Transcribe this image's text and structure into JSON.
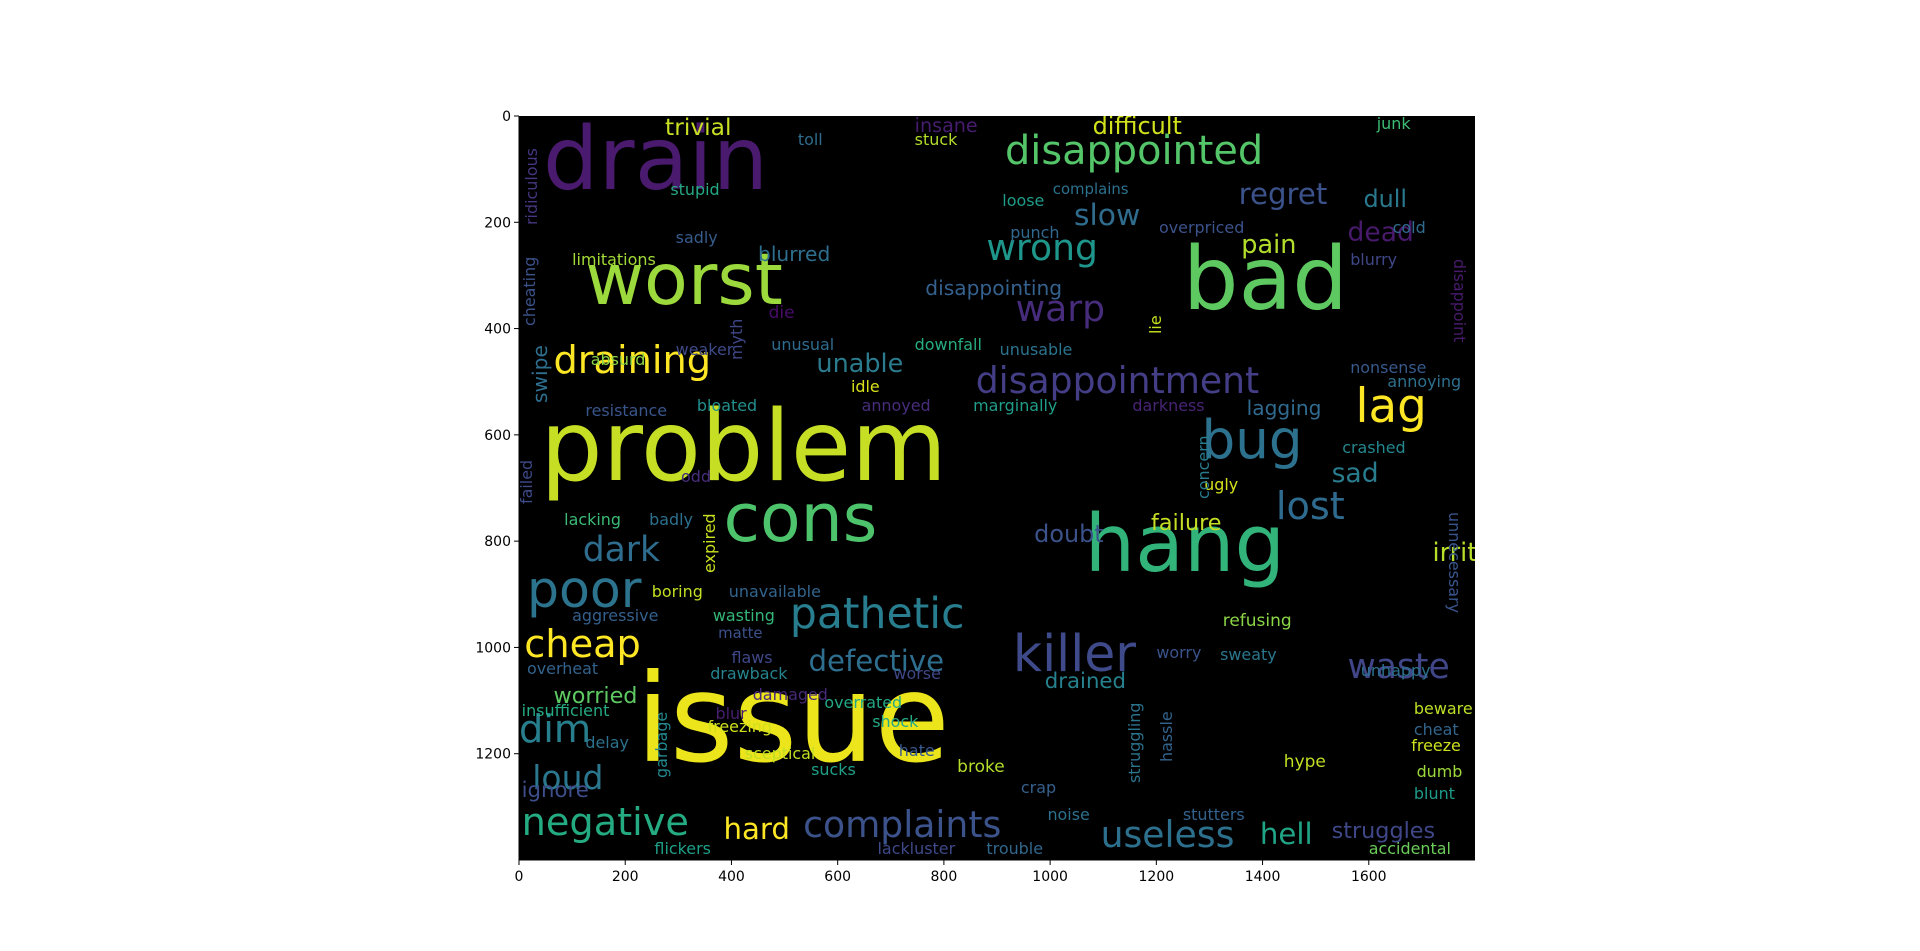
{
  "colors": {
    "background": "#000000",
    "axis": "#000000"
  },
  "chart_data": {
    "type": "wordcloud",
    "title": "",
    "xlabel": "",
    "ylabel": "",
    "xlim": [
      0,
      1800
    ],
    "ylim": [
      1400,
      0
    ],
    "x_ticks": [
      0,
      200,
      400,
      600,
      800,
      1000,
      1200,
      1400,
      1600
    ],
    "y_ticks": [
      0,
      200,
      400,
      600,
      800,
      1000,
      1200
    ],
    "words": [
      {
        "text": "issue",
        "x": 220,
        "y": 1020,
        "size": 230,
        "color": "#ece51c"
      },
      {
        "text": "problem",
        "x": 40,
        "y": 530,
        "size": 185,
        "color": "#c6df25"
      },
      {
        "text": "drain",
        "x": 45,
        "y": 0,
        "size": 165,
        "color": "#491a6d"
      },
      {
        "text": "bad",
        "x": 1250,
        "y": 225,
        "size": 165,
        "color": "#5ec961"
      },
      {
        "text": "hang",
        "x": 1065,
        "y": 730,
        "size": 150,
        "color": "#32b37a"
      },
      {
        "text": "worst",
        "x": 125,
        "y": 240,
        "size": 135,
        "color": "#9bd93c"
      },
      {
        "text": "cons",
        "x": 385,
        "y": 695,
        "size": 125,
        "color": "#4dc36b"
      },
      {
        "text": "disappointed",
        "x": 915,
        "y": 30,
        "size": 75,
        "color": "#54c568"
      },
      {
        "text": "waste",
        "x": 1560,
        "y": 1005,
        "size": 65,
        "color": "#404688"
      },
      {
        "text": "drained",
        "x": 990,
        "y": 1045,
        "size": 40,
        "color": "#26828e"
      },
      {
        "text": "trivial",
        "x": 275,
        "y": 0,
        "size": 44,
        "color": "#c8df24"
      },
      {
        "text": "difficult",
        "x": 1080,
        "y": -2,
        "size": 45,
        "color": "#d2e21b"
      },
      {
        "text": "regret",
        "x": 1355,
        "y": 120,
        "size": 55,
        "color": "#3b528b"
      },
      {
        "text": "slow",
        "x": 1045,
        "y": 160,
        "size": 56,
        "color": "#2f6c8e"
      },
      {
        "text": "wrong",
        "x": 880,
        "y": 215,
        "size": 68,
        "color": "#1f968b"
      },
      {
        "text": "dull",
        "x": 1590,
        "y": 135,
        "size": 45,
        "color": "#2a788e"
      },
      {
        "text": "dead",
        "x": 1560,
        "y": 195,
        "size": 50,
        "color": "#481a6c"
      },
      {
        "text": "pain",
        "x": 1360,
        "y": 220,
        "size": 48,
        "color": "#b4de2c"
      },
      {
        "text": "blurred",
        "x": 450,
        "y": 240,
        "size": 38,
        "color": "#2e6e8e"
      },
      {
        "text": "warp",
        "x": 935,
        "y": 330,
        "size": 68,
        "color": "#462c7b"
      },
      {
        "text": "disappointing",
        "x": 765,
        "y": 305,
        "size": 38,
        "color": "#34618d"
      },
      {
        "text": "draining",
        "x": 65,
        "y": 425,
        "size": 72,
        "color": "#fde725"
      },
      {
        "text": "unable",
        "x": 560,
        "y": 445,
        "size": 48,
        "color": "#2a7b8e"
      },
      {
        "text": "disappointment",
        "x": 860,
        "y": 465,
        "size": 68,
        "color": "#433e85"
      },
      {
        "text": "lag",
        "x": 1575,
        "y": 505,
        "size": 88,
        "color": "#fde725"
      },
      {
        "text": "bug",
        "x": 1285,
        "y": 560,
        "size": 100,
        "color": "#2c718e"
      },
      {
        "text": "lost",
        "x": 1425,
        "y": 700,
        "size": 72,
        "color": "#2f6b8e"
      },
      {
        "text": "sad",
        "x": 1530,
        "y": 650,
        "size": 50,
        "color": "#297b8e"
      },
      {
        "text": "failure",
        "x": 1190,
        "y": 745,
        "size": 42,
        "color": "#c6df25"
      },
      {
        "text": "dark",
        "x": 120,
        "y": 785,
        "size": 65,
        "color": "#2e6d8e"
      },
      {
        "text": "poor",
        "x": 15,
        "y": 845,
        "size": 95,
        "color": "#2c738e"
      },
      {
        "text": "pathetic",
        "x": 510,
        "y": 900,
        "size": 80,
        "color": "#287d8e"
      },
      {
        "text": "killer",
        "x": 930,
        "y": 965,
        "size": 95,
        "color": "#3e4a89"
      },
      {
        "text": "cheap",
        "x": 10,
        "y": 960,
        "size": 72,
        "color": "#fde725"
      },
      {
        "text": "defective",
        "x": 545,
        "y": 1000,
        "size": 55,
        "color": "#2e6e8e"
      },
      {
        "text": "irritating",
        "x": 1720,
        "y": 800,
        "size": 48,
        "color": "#b8de29"
      },
      {
        "text": "doubt",
        "x": 970,
        "y": 765,
        "size": 45,
        "color": "#3b528b"
      },
      {
        "text": "dim",
        "x": 0,
        "y": 1120,
        "size": 72,
        "color": "#277f8e"
      },
      {
        "text": "loud",
        "x": 25,
        "y": 1215,
        "size": 62,
        "color": "#2a778e"
      },
      {
        "text": "negative",
        "x": 5,
        "y": 1295,
        "size": 72,
        "color": "#25ab82"
      },
      {
        "text": "hard",
        "x": 385,
        "y": 1315,
        "size": 55,
        "color": "#fde725"
      },
      {
        "text": "complaints",
        "x": 535,
        "y": 1300,
        "size": 68,
        "color": "#3b528b"
      },
      {
        "text": "useless",
        "x": 1095,
        "y": 1320,
        "size": 68,
        "color": "#2d708e"
      },
      {
        "text": "hell",
        "x": 1395,
        "y": 1325,
        "size": 55,
        "color": "#20a486"
      },
      {
        "text": "struggles",
        "x": 1530,
        "y": 1325,
        "size": 42,
        "color": "#3f4788"
      },
      {
        "text": "worried",
        "x": 65,
        "y": 1070,
        "size": 42,
        "color": "#5ec962"
      },
      {
        "text": "insane",
        "x": 745,
        "y": 0,
        "size": 36,
        "color": "#471c6f"
      },
      {
        "text": "toll",
        "x": 525,
        "y": 30,
        "size": 30,
        "color": "#2f6c8e"
      },
      {
        "text": "stuck",
        "x": 745,
        "y": 30,
        "size": 30,
        "color": "#b2dd2d"
      },
      {
        "text": "junk",
        "x": 1615,
        "y": 0,
        "size": 30,
        "color": "#3cbc75"
      },
      {
        "text": "stupid",
        "x": 285,
        "y": 125,
        "size": 30,
        "color": "#26a884"
      },
      {
        "text": "sadly",
        "x": 295,
        "y": 215,
        "size": 30,
        "color": "#365c8d"
      },
      {
        "text": "limitations",
        "x": 100,
        "y": 255,
        "size": 30,
        "color": "#a2da37"
      },
      {
        "text": "loose",
        "x": 910,
        "y": 145,
        "size": 30,
        "color": "#1e9c89"
      },
      {
        "text": "complains",
        "x": 1005,
        "y": 125,
        "size": 28,
        "color": "#2c718e"
      },
      {
        "text": "punch",
        "x": 925,
        "y": 205,
        "size": 30,
        "color": "#31688e"
      },
      {
        "text": "overpriced",
        "x": 1205,
        "y": 195,
        "size": 30,
        "color": "#3b528b"
      },
      {
        "text": "cold",
        "x": 1645,
        "y": 195,
        "size": 30,
        "color": "#2f6c8e"
      },
      {
        "text": "blurry",
        "x": 1565,
        "y": 255,
        "size": 30,
        "color": "#3f4788"
      },
      {
        "text": "die",
        "x": 470,
        "y": 355,
        "size": 32,
        "color": "#4a0c6b"
      },
      {
        "text": "weaker",
        "x": 295,
        "y": 425,
        "size": 30,
        "color": "#3e4a89"
      },
      {
        "text": "unusual",
        "x": 475,
        "y": 415,
        "size": 30,
        "color": "#2f6b8e"
      },
      {
        "text": "downfall",
        "x": 745,
        "y": 415,
        "size": 30,
        "color": "#26ad81"
      },
      {
        "text": "unusable",
        "x": 905,
        "y": 425,
        "size": 30,
        "color": "#2b748e"
      },
      {
        "text": "absurd",
        "x": 135,
        "y": 445,
        "size": 30,
        "color": "#8bd646"
      },
      {
        "text": "nonsense",
        "x": 1565,
        "y": 460,
        "size": 30,
        "color": "#38598c"
      },
      {
        "text": "annoying",
        "x": 1635,
        "y": 485,
        "size": 30,
        "color": "#2d708e"
      },
      {
        "text": "idle",
        "x": 625,
        "y": 495,
        "size": 30,
        "color": "#d8e219"
      },
      {
        "text": "resistance",
        "x": 125,
        "y": 540,
        "size": 30,
        "color": "#39568c"
      },
      {
        "text": "bloated",
        "x": 335,
        "y": 530,
        "size": 30,
        "color": "#21908d"
      },
      {
        "text": "annoyed",
        "x": 645,
        "y": 530,
        "size": 30,
        "color": "#472d7b"
      },
      {
        "text": "marginally",
        "x": 855,
        "y": 530,
        "size": 30,
        "color": "#1f9e89"
      },
      {
        "text": "darkness",
        "x": 1155,
        "y": 530,
        "size": 30,
        "color": "#482475"
      },
      {
        "text": "lagging",
        "x": 1370,
        "y": 530,
        "size": 38,
        "color": "#306a8e"
      },
      {
        "text": "crashed",
        "x": 1550,
        "y": 610,
        "size": 30,
        "color": "#23888e"
      },
      {
        "text": "odd",
        "x": 305,
        "y": 665,
        "size": 30,
        "color": "#472d7b"
      },
      {
        "text": "ugly",
        "x": 1290,
        "y": 680,
        "size": 30,
        "color": "#d5e21a"
      },
      {
        "text": "lacking",
        "x": 85,
        "y": 745,
        "size": 30,
        "color": "#3bbb75"
      },
      {
        "text": "badly",
        "x": 245,
        "y": 745,
        "size": 30,
        "color": "#2d708e"
      },
      {
        "text": "boring",
        "x": 250,
        "y": 880,
        "size": 30,
        "color": "#c2df23"
      },
      {
        "text": "unavailable",
        "x": 395,
        "y": 880,
        "size": 30,
        "color": "#32658e"
      },
      {
        "text": "aggressive",
        "x": 100,
        "y": 925,
        "size": 30,
        "color": "#34608d"
      },
      {
        "text": "wasting",
        "x": 365,
        "y": 925,
        "size": 30,
        "color": "#35b779"
      },
      {
        "text": "matte",
        "x": 375,
        "y": 960,
        "size": 28,
        "color": "#3b528b"
      },
      {
        "text": "refusing",
        "x": 1325,
        "y": 935,
        "size": 32,
        "color": "#8bd646"
      },
      {
        "text": "sweaty",
        "x": 1320,
        "y": 1000,
        "size": 30,
        "color": "#2a778e"
      },
      {
        "text": "worry",
        "x": 1200,
        "y": 995,
        "size": 30,
        "color": "#3b528b"
      },
      {
        "text": "flaws",
        "x": 400,
        "y": 1005,
        "size": 30,
        "color": "#3f4889"
      },
      {
        "text": "overheat",
        "x": 15,
        "y": 1025,
        "size": 30,
        "color": "#33638d"
      },
      {
        "text": "drawback",
        "x": 360,
        "y": 1035,
        "size": 30,
        "color": "#25848e"
      },
      {
        "text": "worse",
        "x": 705,
        "y": 1035,
        "size": 30,
        "color": "#3f4788"
      },
      {
        "text": "unhappy",
        "x": 1585,
        "y": 1030,
        "size": 30,
        "color": "#2c728e"
      },
      {
        "text": "damaged",
        "x": 440,
        "y": 1075,
        "size": 30,
        "color": "#482878"
      },
      {
        "text": "insufficient",
        "x": 5,
        "y": 1105,
        "size": 30,
        "color": "#25ab82"
      },
      {
        "text": "blur",
        "x": 370,
        "y": 1110,
        "size": 30,
        "color": "#481f70"
      },
      {
        "text": "overrated",
        "x": 575,
        "y": 1090,
        "size": 30,
        "color": "#22a884"
      },
      {
        "text": "shock",
        "x": 665,
        "y": 1125,
        "size": 30,
        "color": "#23a983"
      },
      {
        "text": "freezing",
        "x": 355,
        "y": 1135,
        "size": 30,
        "color": "#d0e11c"
      },
      {
        "text": "beware",
        "x": 1685,
        "y": 1100,
        "size": 30,
        "color": "#bddf26"
      },
      {
        "text": "cheat",
        "x": 1685,
        "y": 1140,
        "size": 30,
        "color": "#32658e"
      },
      {
        "text": "freeze",
        "x": 1680,
        "y": 1170,
        "size": 30,
        "color": "#cde11d"
      },
      {
        "text": "delay",
        "x": 125,
        "y": 1165,
        "size": 30,
        "color": "#2c718e"
      },
      {
        "text": "sceptical",
        "x": 425,
        "y": 1185,
        "size": 30,
        "color": "#c0df25"
      },
      {
        "text": "hate",
        "x": 715,
        "y": 1180,
        "size": 30,
        "color": "#38598c"
      },
      {
        "text": "hype",
        "x": 1440,
        "y": 1200,
        "size": 32,
        "color": "#c2df23"
      },
      {
        "text": "sucks",
        "x": 550,
        "y": 1215,
        "size": 30,
        "color": "#1f9f88"
      },
      {
        "text": "broke",
        "x": 825,
        "y": 1210,
        "size": 32,
        "color": "#b5de2b"
      },
      {
        "text": "dumb",
        "x": 1690,
        "y": 1220,
        "size": 30,
        "color": "#9dd93b"
      },
      {
        "text": "crap",
        "x": 945,
        "y": 1250,
        "size": 30,
        "color": "#35608d"
      },
      {
        "text": "blunt",
        "x": 1685,
        "y": 1260,
        "size": 30,
        "color": "#1e9b8a"
      },
      {
        "text": "ignore",
        "x": 5,
        "y": 1250,
        "size": 40,
        "color": "#3d4e8a"
      },
      {
        "text": "noise",
        "x": 995,
        "y": 1300,
        "size": 30,
        "color": "#2d708e"
      },
      {
        "text": "stutters",
        "x": 1250,
        "y": 1300,
        "size": 30,
        "color": "#33638d"
      },
      {
        "text": "flickers",
        "x": 255,
        "y": 1365,
        "size": 30,
        "color": "#1f9f88"
      },
      {
        "text": "lackluster",
        "x": 675,
        "y": 1365,
        "size": 30,
        "color": "#3e4989"
      },
      {
        "text": "trouble",
        "x": 880,
        "y": 1365,
        "size": 30,
        "color": "#31688e"
      },
      {
        "text": "accidental",
        "x": 1600,
        "y": 1365,
        "size": 30,
        "color": "#6ccd5a"
      },
      {
        "text": "ridiculous",
        "x": 15,
        "y": 10,
        "size": 30,
        "color": "#453781",
        "rotate": -90,
        "ax": 10,
        "ay": 205
      },
      {
        "text": "cheating",
        "x": 5,
        "y": 240,
        "size": 30,
        "color": "#3b528b",
        "rotate": -90,
        "ax": 5,
        "ay": 395
      },
      {
        "text": "swipe",
        "x": 20,
        "y": 420,
        "size": 38,
        "color": "#2e6e8e",
        "rotate": -90,
        "ax": 20,
        "ay": 540
      },
      {
        "text": "failed",
        "x": 0,
        "y": 600,
        "size": 30,
        "color": "#3e4a89",
        "rotate": -90,
        "ax": 0,
        "ay": 730
      },
      {
        "text": "myth",
        "x": 395,
        "y": 375,
        "size": 30,
        "color": "#3f4788",
        "rotate": -90,
        "ax": 395,
        "ay": 460
      },
      {
        "text": "lie",
        "x": 1185,
        "y": 355,
        "size": 30,
        "color": "#c5e021",
        "rotate": -90,
        "ax": 1185,
        "ay": 410
      },
      {
        "text": "disappoint",
        "x": 1755,
        "y": 270,
        "size": 30,
        "color": "#481a6c",
        "rotate": 90,
        "ax": 1785,
        "ay": 270
      },
      {
        "text": "concern",
        "x": 1275,
        "y": 585,
        "size": 30,
        "color": "#287c8e",
        "rotate": -90,
        "ax": 1275,
        "ay": 720
      },
      {
        "text": "expired",
        "x": 345,
        "y": 720,
        "size": 30,
        "color": "#cae11f",
        "rotate": -90,
        "ax": 345,
        "ay": 860
      },
      {
        "text": "unnecessary",
        "x": 1745,
        "y": 745,
        "size": 30,
        "color": "#39568c",
        "rotate": 90,
        "ax": 1775,
        "ay": 745
      },
      {
        "text": "garbage",
        "x": 255,
        "y": 1110,
        "size": 30,
        "color": "#23898e",
        "rotate": -90,
        "ax": 255,
        "ay": 1245
      },
      {
        "text": "struggling",
        "x": 1145,
        "y": 1040,
        "size": 30,
        "color": "#2b748e",
        "rotate": -90,
        "ax": 1145,
        "ay": 1255
      },
      {
        "text": "hassle",
        "x": 1205,
        "y": 1095,
        "size": 30,
        "color": "#33638d",
        "rotate": -90,
        "ax": 1205,
        "ay": 1215
      }
    ]
  }
}
